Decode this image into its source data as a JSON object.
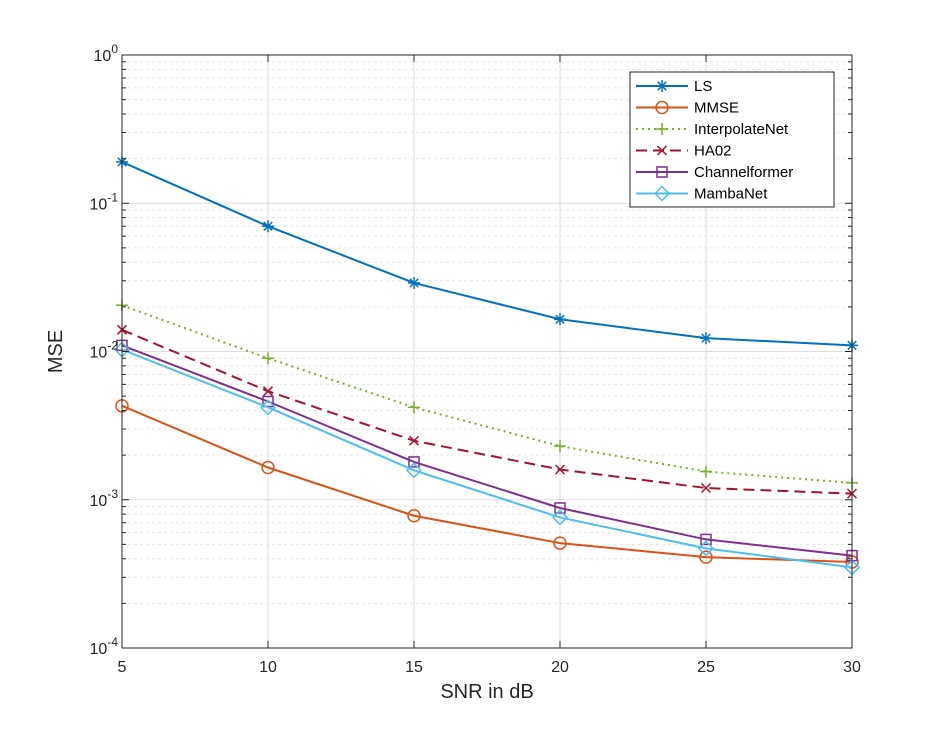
{
  "chart_data": {
    "type": "line",
    "title": "",
    "xlabel": "SNR in dB",
    "ylabel": "MSE",
    "x": [
      5,
      10,
      15,
      20,
      25,
      30
    ],
    "xlim": [
      5,
      30
    ],
    "ylim": [
      0.0001,
      1
    ],
    "yscale": "log",
    "xticks": [
      "5",
      "10",
      "15",
      "20",
      "25",
      "30"
    ],
    "yticks": [
      {
        "value": 1,
        "base": "10",
        "exp": "0"
      },
      {
        "value": 0.1,
        "base": "10",
        "exp": "-1"
      },
      {
        "value": 0.01,
        "base": "10",
        "exp": "-2"
      },
      {
        "value": 0.001,
        "base": "10",
        "exp": "-3"
      },
      {
        "value": 0.0001,
        "base": "10",
        "exp": "-4"
      }
    ],
    "grid": true,
    "legend_position": "top-right",
    "series": [
      {
        "name": "LS",
        "values": [
          0.19,
          0.07,
          0.029,
          0.0165,
          0.0123,
          0.011
        ],
        "color": "#0072BD",
        "marker": "asterisk",
        "linestyle": "solid"
      },
      {
        "name": "MMSE",
        "values": [
          0.0043,
          0.00165,
          0.00078,
          0.00051,
          0.00041,
          0.00038
        ],
        "color": "#D95319",
        "marker": "circle",
        "linestyle": "solid"
      },
      {
        "name": "InterpolateNet",
        "values": [
          0.0205,
          0.009,
          0.0042,
          0.0023,
          0.00155,
          0.0013
        ],
        "color": "#77AC30",
        "marker": "plus",
        "linestyle": "dotted"
      },
      {
        "name": "HA02",
        "values": [
          0.014,
          0.0054,
          0.0025,
          0.0016,
          0.0012,
          0.0011
        ],
        "color": "#A2142F",
        "marker": "cross",
        "linestyle": "dashed"
      },
      {
        "name": "Channelformer",
        "values": [
          0.011,
          0.0046,
          0.0018,
          0.00088,
          0.00054,
          0.00042
        ],
        "color": "#7E2F8E",
        "marker": "square",
        "linestyle": "solid"
      },
      {
        "name": "MambaNet",
        "values": [
          0.0103,
          0.0042,
          0.00158,
          0.00076,
          0.00047,
          0.00035
        ],
        "color": "#4DBEEE",
        "marker": "diamond",
        "linestyle": "solid"
      }
    ]
  }
}
